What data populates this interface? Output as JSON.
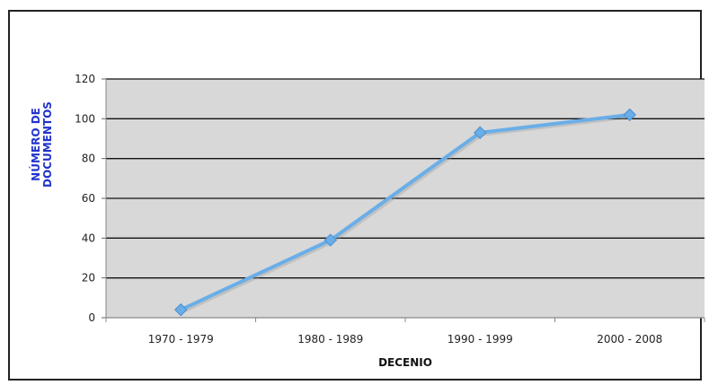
{
  "chart_data": {
    "type": "line",
    "categories": [
      "1970 - 1979",
      "1980 - 1989",
      "1990 - 1999",
      "2000 - 2008"
    ],
    "series": [
      {
        "values": [
          4,
          39,
          93,
          102
        ]
      }
    ],
    "xlabel": "DECENIO",
    "ylabel_lines": [
      "NÚMERO DE",
      "DOCUMENTOS"
    ],
    "ylim": [
      0,
      120
    ],
    "yticks": [
      0,
      20,
      40,
      60,
      80,
      100,
      120
    ],
    "grid": true,
    "legend": "none",
    "colors": {
      "plot_background": "#d8d8d8",
      "gridline": "#111111",
      "line": "#6aaee8",
      "ylabel": "#2233cc"
    }
  }
}
